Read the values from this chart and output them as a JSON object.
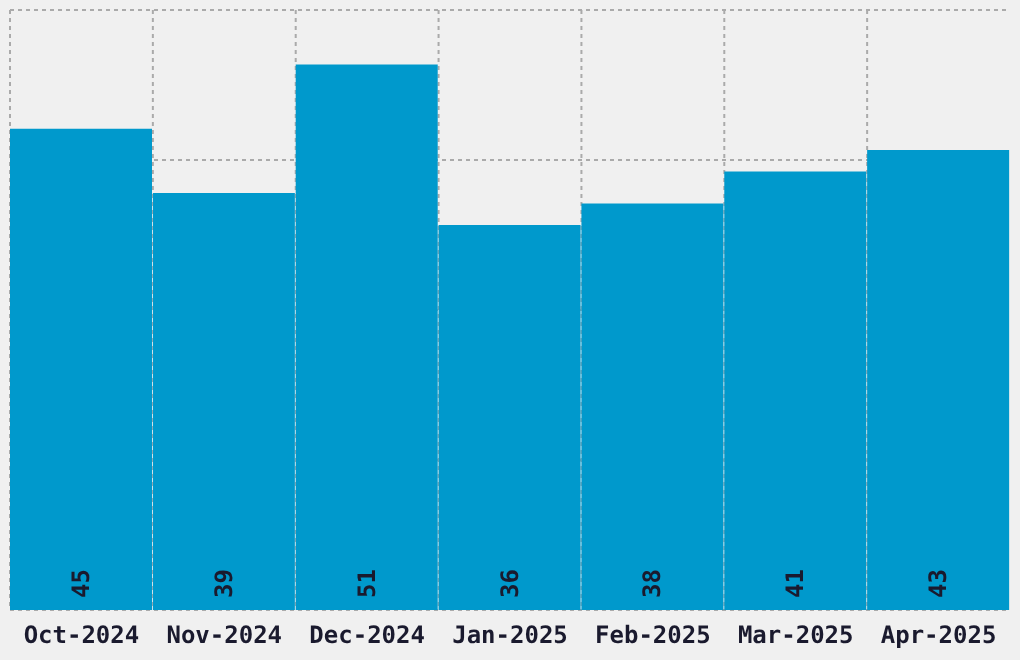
{
  "chart_data": {
    "type": "bar",
    "categories": [
      "Oct-2024",
      "Nov-2024",
      "Dec-2024",
      "Jan-2025",
      "Feb-2025",
      "Mar-2025",
      "Apr-2025"
    ],
    "values": [
      45,
      39,
      51,
      36,
      38,
      41,
      43
    ],
    "color": "#0099cc",
    "grid": true,
    "data_labels": true,
    "tick_labels": "x"
  }
}
